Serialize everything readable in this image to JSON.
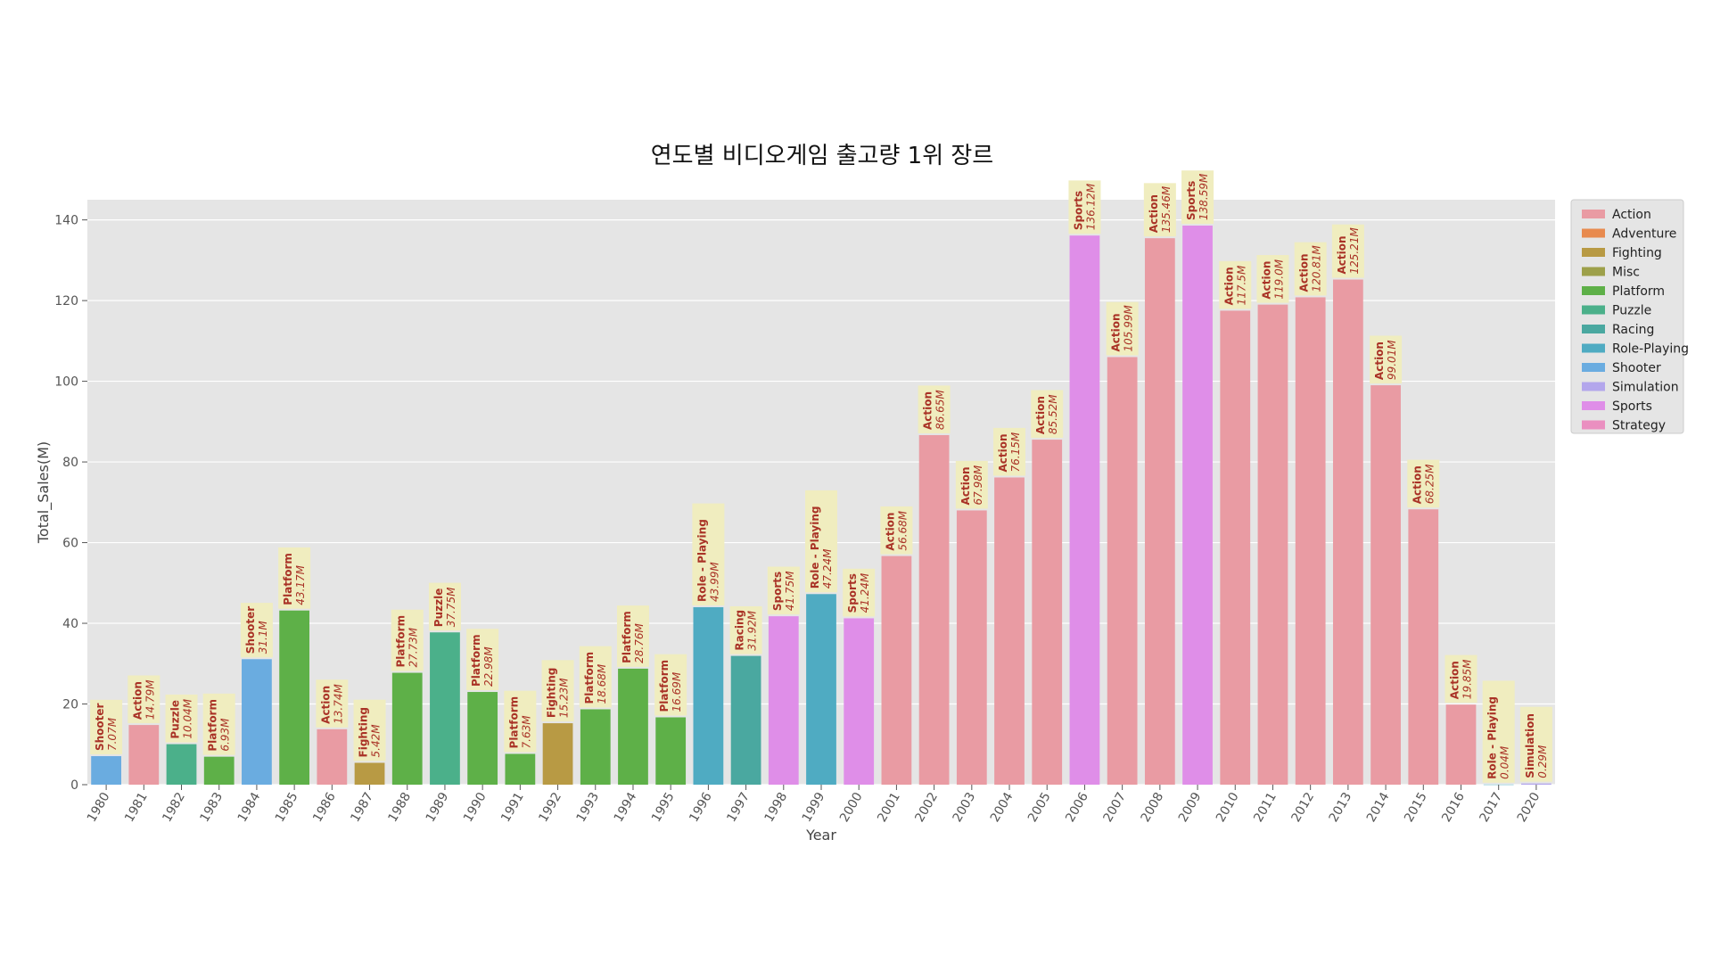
{
  "chart_data": {
    "type": "bar",
    "title": "연도별 비디오게임 출고량 1위 장르",
    "xlabel": "Year",
    "ylabel": "Total_Sales(M)",
    "ylim": [
      0,
      145
    ],
    "yticks": [
      0,
      20,
      40,
      60,
      80,
      100,
      120,
      140
    ],
    "grid": true,
    "legend_position": "right, outside top",
    "categories": [
      "1980",
      "1981",
      "1982",
      "1983",
      "1984",
      "1985",
      "1986",
      "1987",
      "1988",
      "1989",
      "1990",
      "1991",
      "1992",
      "1993",
      "1994",
      "1995",
      "1996",
      "1997",
      "1998",
      "1999",
      "2000",
      "2001",
      "2002",
      "2003",
      "2004",
      "2005",
      "2006",
      "2007",
      "2008",
      "2009",
      "2010",
      "2011",
      "2012",
      "2013",
      "2014",
      "2015",
      "2016",
      "2017",
      "2020"
    ],
    "values": [
      7.07,
      14.79,
      10.04,
      6.93,
      31.1,
      43.17,
      13.74,
      5.42,
      27.73,
      37.75,
      22.98,
      7.63,
      15.23,
      18.68,
      28.76,
      16.69,
      43.99,
      31.92,
      41.75,
      47.24,
      41.24,
      56.68,
      86.65,
      67.98,
      76.15,
      85.52,
      136.12,
      105.99,
      135.46,
      138.59,
      117.5,
      119.0,
      120.81,
      125.21,
      99.01,
      68.25,
      19.85,
      0.04,
      0.29
    ],
    "genres": [
      "Shooter",
      "Action",
      "Puzzle",
      "Platform",
      "Shooter",
      "Platform",
      "Action",
      "Fighting",
      "Platform",
      "Puzzle",
      "Platform",
      "Platform",
      "Fighting",
      "Platform",
      "Platform",
      "Platform",
      "Role - Playing",
      "Racing",
      "Sports",
      "Role - Playing",
      "Sports",
      "Action",
      "Action",
      "Action",
      "Action",
      "Action",
      "Sports",
      "Action",
      "Action",
      "Sports",
      "Action",
      "Action",
      "Action",
      "Action",
      "Action",
      "Action",
      "Action",
      "Role - Playing",
      "Simulation"
    ],
    "data_labels": [
      "7.07M",
      "14.79M",
      "10.04M",
      "6.93M",
      "31.1M",
      "43.17M",
      "13.74M",
      "5.42M",
      "27.73M",
      "37.75M",
      "22.98M",
      "7.63M",
      "15.23M",
      "18.68M",
      "28.76M",
      "16.69M",
      "43.99M",
      "31.92M",
      "41.75M",
      "47.24M",
      "41.24M",
      "56.68M",
      "86.65M",
      "67.98M",
      "76.15M",
      "85.52M",
      "136.12M",
      "105.99M",
      "135.46M",
      "138.59M",
      "117.5M",
      "119.0M",
      "120.81M",
      "125.21M",
      "99.01M",
      "68.25M",
      "19.85M",
      "0.04M",
      "0.29M"
    ],
    "legend": [
      {
        "name": "Action",
        "color": "#e99ba3"
      },
      {
        "name": "Adventure",
        "color": "#e88a4e"
      },
      {
        "name": "Fighting",
        "color": "#b89a44"
      },
      {
        "name": "Misc",
        "color": "#9da04a"
      },
      {
        "name": "Platform",
        "color": "#5eb048"
      },
      {
        "name": "Puzzle",
        "color": "#4bb08a"
      },
      {
        "name": "Racing",
        "color": "#4aa8a0"
      },
      {
        "name": "Role-Playing",
        "color": "#4fabc2"
      },
      {
        "name": "Shooter",
        "color": "#6aace0"
      },
      {
        "name": "Simulation",
        "color": "#b3a6ec"
      },
      {
        "name": "Sports",
        "color": "#df8ee8"
      },
      {
        "name": "Strategy",
        "color": "#ea8fc0"
      }
    ],
    "genre_colors": {
      "Action": "#e99ba3",
      "Adventure": "#e88a4e",
      "Fighting": "#b89a44",
      "Misc": "#9da04a",
      "Platform": "#5eb048",
      "Puzzle": "#4bb08a",
      "Racing": "#4aa8a0",
      "Role - Playing": "#4fabc2",
      "Shooter": "#6aace0",
      "Simulation": "#b3a6ec",
      "Sports": "#df8ee8",
      "Strategy": "#ea8fc0"
    },
    "colors": {
      "plot_background": "#e5e5e5",
      "grid": "#ffffff",
      "label_box": "#f0edbf",
      "label_text": "#a93226"
    }
  }
}
